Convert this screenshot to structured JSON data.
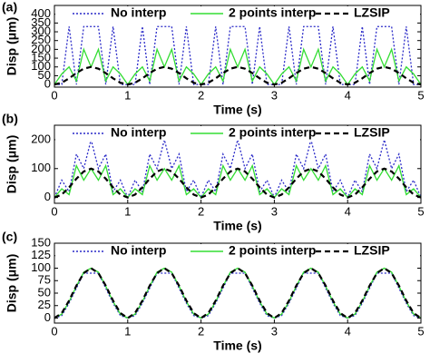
{
  "chart_data": [
    {
      "type": "line",
      "panel_label": "(a)",
      "x_label": "Time (s)",
      "y_label": "Disp (μm)",
      "x": [
        0,
        0.1,
        0.2,
        0.3,
        0.4,
        0.5,
        0.6,
        0.7,
        0.8,
        0.9,
        1,
        1.1,
        1.2,
        1.3,
        1.4,
        1.5,
        1.6,
        1.7,
        1.8,
        1.9,
        2,
        2.1,
        2.2,
        2.3,
        2.4,
        2.5,
        2.6,
        2.7,
        2.8,
        2.9,
        3,
        3.1,
        3.2,
        3.3,
        3.4,
        3.5,
        3.6,
        3.7,
        3.8,
        3.9,
        4,
        4.1,
        4.2,
        4.3,
        4.4,
        4.5,
        4.6,
        4.7,
        4.8,
        4.9,
        5
      ],
      "series": [
        {
          "name": "No interp",
          "color": "#2a2ac8",
          "dash": "2,2",
          "values": [
            0,
            0,
            330,
            0,
            330,
            330,
            330,
            0,
            330,
            0,
            0,
            0,
            330,
            0,
            330,
            330,
            330,
            0,
            330,
            0,
            0,
            0,
            330,
            0,
            330,
            330,
            330,
            0,
            330,
            0,
            0,
            0,
            330,
            0,
            330,
            330,
            330,
            0,
            330,
            0,
            0,
            0,
            330,
            0,
            330,
            330,
            330,
            0,
            330,
            0,
            0
          ]
        },
        {
          "name": "2 points interp",
          "color": "#33dd33",
          "dash": "",
          "values": [
            0,
            60,
            100,
            20,
            200,
            100,
            200,
            20,
            100,
            60,
            0,
            60,
            100,
            20,
            200,
            100,
            200,
            20,
            100,
            60,
            0,
            60,
            100,
            20,
            200,
            100,
            200,
            20,
            100,
            60,
            0,
            60,
            100,
            20,
            200,
            100,
            200,
            20,
            100,
            60,
            0,
            60,
            100,
            20,
            200,
            100,
            200,
            20,
            100,
            60,
            0
          ]
        },
        {
          "name": "LZSIP",
          "color": "#000000",
          "dash": "6,4",
          "values": [
            0,
            10,
            35,
            65,
            90,
            100,
            90,
            65,
            35,
            10,
            0,
            10,
            35,
            65,
            90,
            100,
            90,
            65,
            35,
            10,
            0,
            10,
            35,
            65,
            90,
            100,
            90,
            65,
            35,
            10,
            0,
            10,
            35,
            65,
            90,
            100,
            90,
            65,
            35,
            10,
            0,
            10,
            35,
            65,
            90,
            100,
            90,
            65,
            35,
            10,
            0
          ]
        }
      ],
      "xlim": [
        0,
        5
      ],
      "xticks": [
        0,
        1,
        2,
        3,
        4,
        5
      ],
      "ylim": [
        -15,
        450
      ],
      "yticks": [
        0,
        50,
        100,
        150,
        200,
        250,
        300,
        350,
        400
      ]
    },
    {
      "type": "line",
      "panel_label": "(b)",
      "x_label": "Time (s)",
      "y_label": "Disp (μm)",
      "x": [
        0,
        0.1,
        0.2,
        0.3,
        0.4,
        0.5,
        0.6,
        0.7,
        0.8,
        0.9,
        1,
        1.1,
        1.2,
        1.3,
        1.4,
        1.5,
        1.6,
        1.7,
        1.8,
        1.9,
        2,
        2.1,
        2.2,
        2.3,
        2.4,
        2.5,
        2.6,
        2.7,
        2.8,
        2.9,
        3,
        3.1,
        3.2,
        3.3,
        3.4,
        3.5,
        3.6,
        3.7,
        3.8,
        3.9,
        4,
        4.1,
        4.2,
        4.3,
        4.4,
        4.5,
        4.6,
        4.7,
        4.8,
        4.9,
        5
      ],
      "series": [
        {
          "name": "No interp",
          "color": "#2a2ac8",
          "dash": "2,2",
          "values": [
            0,
            60,
            20,
            150,
            100,
            200,
            100,
            150,
            20,
            60,
            0,
            60,
            20,
            150,
            100,
            200,
            100,
            150,
            20,
            60,
            0,
            60,
            20,
            150,
            100,
            200,
            100,
            150,
            20,
            60,
            0,
            60,
            20,
            150,
            100,
            200,
            100,
            150,
            20,
            60,
            0,
            60,
            20,
            150,
            100,
            200,
            100,
            150,
            20,
            60,
            0
          ]
        },
        {
          "name": "2 points interp",
          "color": "#33dd33",
          "dash": "",
          "values": [
            0,
            30,
            10,
            110,
            60,
            100,
            60,
            110,
            10,
            30,
            0,
            30,
            10,
            110,
            60,
            100,
            60,
            110,
            10,
            30,
            0,
            30,
            10,
            110,
            60,
            100,
            60,
            110,
            10,
            30,
            0,
            30,
            10,
            110,
            60,
            100,
            60,
            110,
            10,
            30,
            0,
            30,
            10,
            110,
            60,
            100,
            60,
            110,
            10,
            30,
            0
          ]
        },
        {
          "name": "LZSIP",
          "color": "#000000",
          "dash": "6,4",
          "values": [
            0,
            10,
            35,
            65,
            90,
            100,
            90,
            65,
            35,
            10,
            0,
            10,
            35,
            65,
            90,
            100,
            90,
            65,
            35,
            10,
            0,
            10,
            35,
            65,
            90,
            100,
            90,
            65,
            35,
            10,
            0,
            10,
            35,
            65,
            90,
            100,
            90,
            65,
            35,
            10,
            0,
            10,
            35,
            65,
            90,
            100,
            90,
            65,
            35,
            10,
            0
          ]
        }
      ],
      "xlim": [
        0,
        5
      ],
      "xticks": [
        0,
        1,
        2,
        3,
        4,
        5
      ],
      "ylim": [
        -20,
        250
      ],
      "yticks": [
        0,
        100,
        200
      ]
    },
    {
      "type": "line",
      "panel_label": "(c)",
      "x_label": "Time (s)",
      "y_label": "Disp (μm)",
      "x": [
        0,
        0.1,
        0.2,
        0.3,
        0.4,
        0.5,
        0.6,
        0.7,
        0.8,
        0.9,
        1,
        1.1,
        1.2,
        1.3,
        1.4,
        1.5,
        1.6,
        1.7,
        1.8,
        1.9,
        2,
        2.1,
        2.2,
        2.3,
        2.4,
        2.5,
        2.6,
        2.7,
        2.8,
        2.9,
        3,
        3.1,
        3.2,
        3.3,
        3.4,
        3.5,
        3.6,
        3.7,
        3.8,
        3.9,
        4,
        4.1,
        4.2,
        4.3,
        4.4,
        4.5,
        4.6,
        4.7,
        4.8,
        4.9,
        5
      ],
      "series": [
        {
          "name": "No interp",
          "color": "#2a2ac8",
          "dash": "2,2",
          "values": [
            0,
            5,
            30,
            60,
            90,
            90,
            90,
            60,
            30,
            5,
            0,
            5,
            30,
            60,
            90,
            90,
            90,
            60,
            30,
            5,
            0,
            5,
            30,
            60,
            90,
            90,
            90,
            60,
            30,
            5,
            0,
            5,
            30,
            60,
            90,
            90,
            90,
            60,
            30,
            5,
            0,
            5,
            30,
            60,
            90,
            90,
            90,
            60,
            30,
            5,
            0
          ]
        },
        {
          "name": "2 points interp",
          "color": "#33dd33",
          "dash": "",
          "values": [
            0,
            8,
            33,
            64,
            92,
            100,
            92,
            64,
            33,
            8,
            0,
            8,
            33,
            64,
            92,
            100,
            92,
            64,
            33,
            8,
            0,
            8,
            33,
            64,
            92,
            100,
            92,
            64,
            33,
            8,
            0,
            8,
            33,
            64,
            92,
            100,
            92,
            64,
            33,
            8,
            0,
            8,
            33,
            64,
            92,
            100,
            92,
            64,
            33,
            8,
            0
          ]
        },
        {
          "name": "LZSIP",
          "color": "#000000",
          "dash": "6,4",
          "values": [
            0,
            10,
            35,
            65,
            90,
            100,
            90,
            65,
            35,
            10,
            0,
            10,
            35,
            65,
            90,
            100,
            90,
            65,
            35,
            10,
            0,
            10,
            35,
            65,
            90,
            100,
            90,
            65,
            35,
            10,
            0,
            10,
            35,
            65,
            90,
            100,
            90,
            65,
            35,
            10,
            0,
            10,
            35,
            65,
            90,
            100,
            90,
            65,
            35,
            10,
            0
          ]
        }
      ],
      "xlim": [
        0,
        5
      ],
      "xticks": [
        0,
        1,
        2,
        3,
        4,
        5
      ],
      "ylim": [
        -10,
        150
      ],
      "yticks": [
        0,
        25,
        50,
        75,
        100,
        125,
        150
      ]
    }
  ]
}
